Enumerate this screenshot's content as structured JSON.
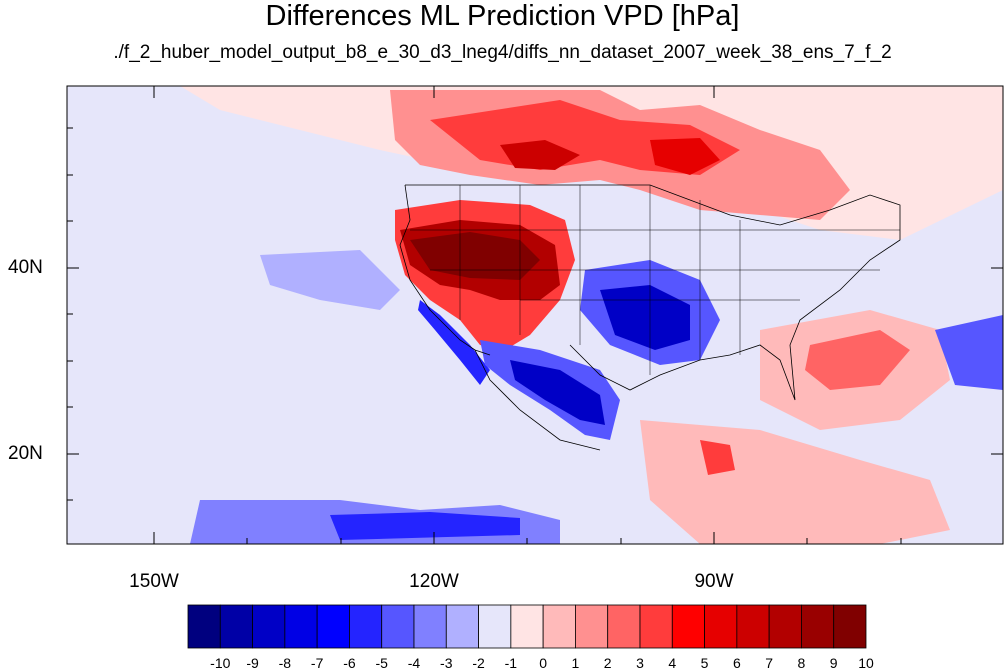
{
  "title": "Differences ML Prediction VPD [hPa]",
  "subtitle": "./f_2_huber_model_output_b8_e_30_d3_lneg4/diffs_nn_dataset_2007_week_38_ens_7_f_2",
  "map": {
    "region": "contiguous United States, northern Mexico and adjacent Pacific / Atlantic",
    "lat_labels": [
      "40N",
      "20N"
    ],
    "lon_labels": [
      "150W",
      "120W",
      "90W"
    ],
    "background_color": "#e6e6fa"
  },
  "colorbar": {
    "labels": [
      "-10",
      "-9",
      "-8",
      "-7",
      "-6",
      "-5",
      "-4",
      "-3",
      "-2",
      "-1",
      "0",
      "1",
      "2",
      "3",
      "4",
      "5",
      "6",
      "7",
      "8",
      "9",
      "10"
    ],
    "colors": [
      "#00007f",
      "#0000a6",
      "#0000c6",
      "#0000e5",
      "#0000ff",
      "#2424ff",
      "#5656ff",
      "#8080ff",
      "#b0b0ff",
      "#e6e6fa",
      "#ffe4e4",
      "#ffbaba",
      "#ff9090",
      "#ff6464",
      "#ff3c3c",
      "#ff0000",
      "#e60000",
      "#cc0000",
      "#b20000",
      "#990000",
      "#800000"
    ]
  }
}
